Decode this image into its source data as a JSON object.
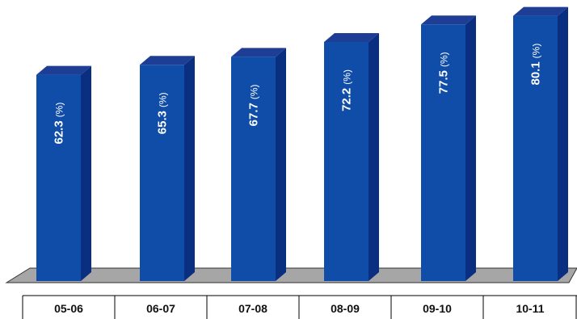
{
  "chart_data": {
    "type": "bar",
    "title": "",
    "xlabel": "",
    "ylabel": "",
    "categories": [
      "05-06",
      "06-07",
      "07-08",
      "08-09",
      "09-10",
      "10-11"
    ],
    "values": [
      62.3,
      65.3,
      67.7,
      72.2,
      77.5,
      80.1
    ],
    "data_labels": [
      "62.3",
      "65.3",
      "67.7",
      "72.2",
      "77.5",
      "80.1"
    ],
    "unit_label": "(%)",
    "ylim": [
      0,
      100
    ],
    "grid": false,
    "legend": "none",
    "style": "3d-column",
    "colors": {
      "bar_front": "#0F4DA8",
      "bar_side": "#0A2F80",
      "bar_top": "#1E3E96",
      "floor": "#A6A6A6",
      "floor_edge": "#333333",
      "label_text": "#FFFFFF",
      "tick_text": "#111111"
    }
  }
}
